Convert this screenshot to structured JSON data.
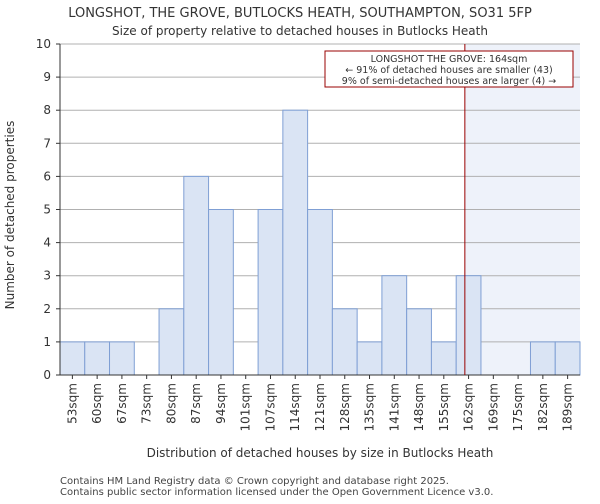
{
  "chart_data": {
    "type": "bar",
    "title": "LONGSHOT, THE GROVE, BUTLOCKS HEATH, SOUTHAMPTON, SO31 5FP",
    "subtitle": "Size of property relative to detached houses in Butlocks Heath",
    "xlabel": "Distribution of detached houses by size in Butlocks Heath",
    "ylabel": "Number of detached properties",
    "categories": [
      "53sqm",
      "60sqm",
      "67sqm",
      "73sqm",
      "80sqm",
      "87sqm",
      "94sqm",
      "101sqm",
      "107sqm",
      "114sqm",
      "121sqm",
      "128sqm",
      "135sqm",
      "141sqm",
      "148sqm",
      "155sqm",
      "162sqm",
      "169sqm",
      "175sqm",
      "182sqm",
      "189sqm"
    ],
    "values": [
      1,
      1,
      1,
      0,
      2,
      6,
      5,
      0,
      5,
      8,
      5,
      2,
      1,
      3,
      2,
      1,
      3,
      0,
      0,
      1,
      1
    ],
    "ylim": [
      0,
      10
    ],
    "yticks": [
      0,
      1,
      2,
      3,
      4,
      5,
      6,
      7,
      8,
      9,
      10
    ],
    "grid": true,
    "marker": {
      "value_index": 16.35,
      "color": "#990000"
    },
    "highlight_from_index": 16.35,
    "annotation": {
      "line1": "LONGSHOT THE GROVE: 164sqm",
      "line2": "← 91% of detached houses are smaller (43)",
      "line3": "9% of semi-detached houses are larger (4) →"
    },
    "colors": {
      "bar_fill": "#dae4f4",
      "bar_stroke": "#7f9fd4",
      "grid": "#b0b0b0",
      "highlight": "#eef2fa"
    }
  },
  "footer": {
    "line1": "Contains HM Land Registry data © Crown copyright and database right 2025.",
    "line2": "Contains public sector information licensed under the Open Government Licence v3.0."
  }
}
